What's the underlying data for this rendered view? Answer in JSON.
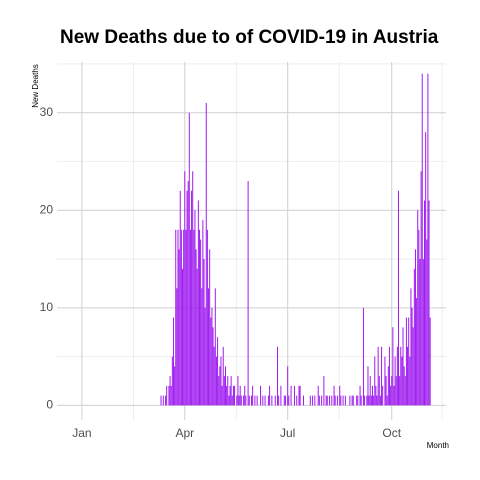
{
  "chart_data": {
    "type": "bar",
    "title": "New Deaths due to of COVID-19 in Austria",
    "x_label": "Month",
    "y_label": "New Deaths",
    "color": "#a020f0",
    "grid": true,
    "xlim": [
      -21,
      323
    ],
    "xticks": [
      {
        "value": 1,
        "label": "Jan"
      },
      {
        "value": 92,
        "label": "Apr"
      },
      {
        "value": 183,
        "label": "Jul"
      },
      {
        "value": 275,
        "label": "Oct"
      }
    ],
    "ylim": [
      -1.5,
      35.2
    ],
    "yticks": [
      0,
      10,
      20,
      30
    ],
    "x": [
      71,
      72,
      73,
      74,
      75,
      76,
      77,
      78,
      79,
      80,
      81,
      82,
      83,
      84,
      85,
      86,
      87,
      88,
      89,
      90,
      91,
      92,
      93,
      94,
      95,
      96,
      97,
      98,
      99,
      100,
      101,
      102,
      103,
      104,
      105,
      106,
      107,
      108,
      109,
      110,
      111,
      112,
      113,
      114,
      115,
      116,
      117,
      118,
      119,
      120,
      121,
      122,
      123,
      124,
      125,
      126,
      127,
      128,
      129,
      130,
      131,
      132,
      133,
      134,
      135,
      136,
      137,
      138,
      139,
      140,
      141,
      142,
      143,
      144,
      145,
      146,
      147,
      148,
      149,
      150,
      151,
      152,
      153,
      154,
      155,
      156,
      157,
      158,
      159,
      160,
      161,
      162,
      163,
      164,
      165,
      166,
      167,
      168,
      169,
      170,
      171,
      172,
      173,
      174,
      175,
      176,
      177,
      178,
      179,
      180,
      181,
      182,
      183,
      184,
      185,
      186,
      187,
      188,
      189,
      190,
      191,
      192,
      193,
      194,
      195,
      196,
      197,
      198,
      199,
      200,
      201,
      202,
      203,
      204,
      205,
      206,
      207,
      208,
      209,
      210,
      211,
      212,
      213,
      214,
      215,
      216,
      217,
      218,
      219,
      220,
      221,
      222,
      223,
      224,
      225,
      226,
      227,
      228,
      229,
      230,
      231,
      232,
      233,
      234,
      235,
      236,
      237,
      238,
      239,
      240,
      241,
      242,
      243,
      244,
      245,
      246,
      247,
      248,
      249,
      250,
      251,
      252,
      253,
      254,
      255,
      256,
      257,
      258,
      259,
      260,
      261,
      262,
      263,
      264,
      265,
      266,
      267,
      268,
      269,
      270,
      271,
      272,
      273,
      274,
      275,
      276,
      277,
      278,
      279,
      280,
      281,
      282,
      283,
      284,
      285,
      286,
      287,
      288,
      289,
      290,
      291,
      292,
      293,
      294,
      295,
      296,
      297,
      298,
      299,
      300,
      301,
      302,
      303,
      304,
      305,
      306,
      307,
      308,
      309
    ],
    "values": [
      1,
      0,
      1,
      0,
      1,
      2,
      0,
      2,
      3,
      2,
      5,
      9,
      4,
      18,
      12,
      18,
      16,
      22,
      18,
      14,
      18,
      24,
      18,
      22,
      23,
      30,
      18,
      22,
      24,
      18,
      20,
      16,
      14,
      21,
      18,
      17,
      12,
      19,
      15,
      10,
      31,
      18,
      12,
      16,
      9,
      10,
      8,
      6,
      12,
      5,
      7,
      3,
      4,
      5,
      2,
      6,
      3,
      4,
      2,
      3,
      1,
      2,
      3,
      1,
      2,
      2,
      0,
      1,
      3,
      1,
      2,
      1,
      0,
      1,
      2,
      1,
      0,
      23,
      1,
      0,
      1,
      2,
      0,
      1,
      0,
      1,
      0,
      0,
      2,
      0,
      1,
      0,
      1,
      0,
      0,
      1,
      2,
      0,
      1,
      0,
      0,
      1,
      0,
      6,
      1,
      0,
      2,
      0,
      0,
      1,
      1,
      0,
      4,
      1,
      0,
      2,
      0,
      0,
      2,
      0,
      1,
      0,
      2,
      2,
      0,
      0,
      1,
      0,
      0,
      0,
      0,
      0,
      1,
      0,
      1,
      0,
      1,
      0,
      0,
      2,
      1,
      0,
      1,
      0,
      3,
      0,
      1,
      1,
      0,
      1,
      0,
      1,
      0,
      2,
      1,
      0,
      1,
      0,
      2,
      1,
      0,
      1,
      0,
      1,
      0,
      0,
      0,
      1,
      0,
      1,
      1,
      0,
      0,
      1,
      1,
      0,
      2,
      1,
      0,
      10,
      1,
      0,
      1,
      4,
      1,
      3,
      1,
      2,
      1,
      5,
      2,
      1,
      6,
      3,
      1,
      6,
      2,
      0,
      5,
      3,
      1,
      4,
      6,
      2,
      3,
      8,
      2,
      5,
      3,
      6,
      22,
      3,
      6,
      5,
      8,
      4,
      3,
      9,
      6,
      9,
      5,
      12,
      10,
      8,
      14,
      16,
      11,
      20,
      18,
      15,
      24,
      34,
      15,
      21,
      28,
      17,
      34,
      21,
      9
    ]
  }
}
